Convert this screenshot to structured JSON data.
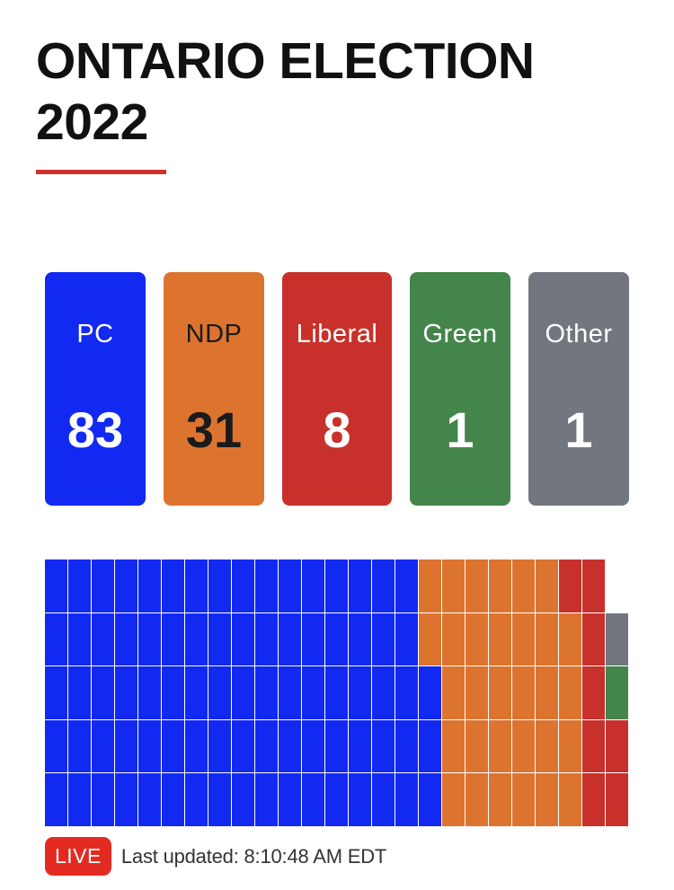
{
  "title": "ONTARIO ELECTION 2022",
  "accent_color": "#d0312d",
  "parties": [
    {
      "key": "pc",
      "name": "PC",
      "seats": "83",
      "color": "#1229f2",
      "text_color": "#ffffff"
    },
    {
      "key": "ndp",
      "name": "NDP",
      "seats": "31",
      "color": "#dc7430",
      "text_color": "#1a1a1a"
    },
    {
      "key": "liberal",
      "name": "Liberal",
      "seats": "8",
      "color": "#c8312b",
      "text_color": "#ffffff"
    },
    {
      "key": "green",
      "name": "Green",
      "seats": "1",
      "color": "#43854a",
      "text_color": "#ffffff"
    },
    {
      "key": "other",
      "name": "Other",
      "seats": "1",
      "color": "#72767f",
      "text_color": "#ffffff"
    }
  ],
  "chart_data": {
    "type": "waffle",
    "total_seats": 124,
    "rows": 5,
    "columns": 25,
    "series": [
      {
        "name": "PC",
        "values": [
          83
        ],
        "color": "#1229f2"
      },
      {
        "name": "NDP",
        "values": [
          31
        ],
        "color": "#dc7430"
      },
      {
        "name": "Liberal",
        "values": [
          8
        ],
        "color": "#c8312b"
      },
      {
        "name": "Green",
        "values": [
          1
        ],
        "color": "#43854a"
      },
      {
        "name": "Other",
        "values": [
          1
        ],
        "color": "#72767f"
      }
    ]
  },
  "footer": {
    "live_label": "LIVE",
    "live_color": "#e32b22",
    "updated_text": "Last updated: 8:10:48 AM EDT"
  }
}
